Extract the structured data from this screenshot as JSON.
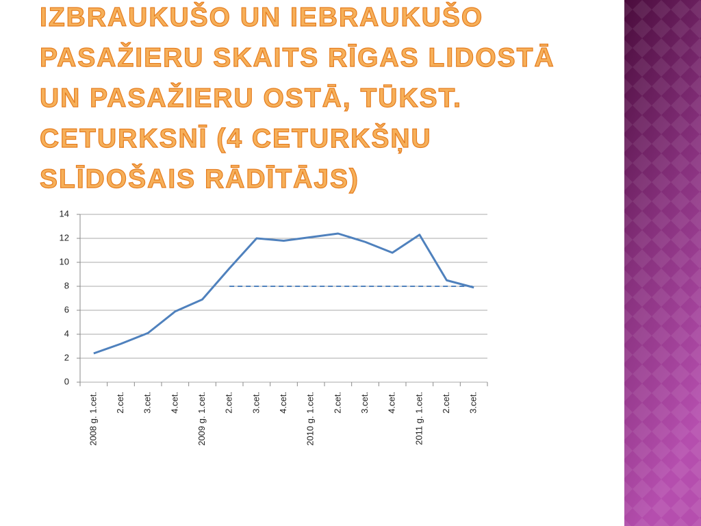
{
  "chart_data": {
    "type": "line",
    "title": [
      "IZBRAUKUŠO UN IEBRAUKUŠO",
      "PASAŽIERU SKAITS RĪGAS LIDOSTĀ",
      "UN PASAŽIERU OSTĀ, TŪKST.",
      "CETURKSNĪ (4 CETURKŠŅU",
      "SLĪDOŠAIS RĀDĪTĀJS)"
    ],
    "categories": [
      "2008 g. 1.cet.",
      "2.cet.",
      "3.cet.",
      "4.cet.",
      "2009 g. 1.cet.",
      "2.cet.",
      "3.cet.",
      "4.cet.",
      "2010 g. 1.cet.",
      "2.cet.",
      "3.cet.",
      "4.cet.",
      "2011 g. 1.cet.",
      "2.cet.",
      "3.cet."
    ],
    "series": [
      {
        "color": "#4f81bd",
        "values": [
          2.4,
          3.2,
          4.1,
          5.9,
          6.9,
          9.5,
          12.0,
          11.8,
          12.1,
          12.4,
          11.7,
          10.8,
          12.3,
          8.5,
          7.9
        ]
      },
      {
        "color": "#4f81bd",
        "dashed": true,
        "values": [
          null,
          null,
          null,
          null,
          null,
          8,
          8,
          8,
          8,
          8,
          8,
          8,
          8,
          8,
          8
        ]
      }
    ],
    "ylim": [
      0,
      14
    ],
    "yticks": [
      0,
      2,
      4,
      6,
      8,
      10,
      12,
      14
    ],
    "grid": true
  }
}
